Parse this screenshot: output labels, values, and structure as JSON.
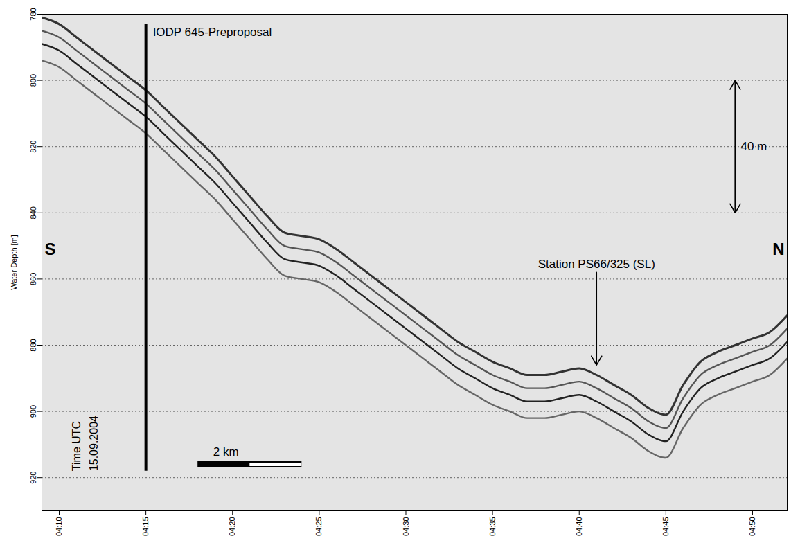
{
  "chart_data": {
    "type": "line",
    "y_label": "Water Depth [m]",
    "x": [
      "2004-09-15T04:09Z",
      "2004-09-15T04:10Z",
      "2004-09-15T04:11Z",
      "2004-09-15T04:12Z",
      "2004-09-15T04:13Z",
      "2004-09-15T04:14Z",
      "2004-09-15T04:15Z",
      "2004-09-15T04:16Z",
      "2004-09-15T04:17Z",
      "2004-09-15T04:18Z",
      "2004-09-15T04:19Z",
      "2004-09-15T04:20Z",
      "2004-09-15T04:21Z",
      "2004-09-15T04:22Z",
      "2004-09-15T04:23Z",
      "2004-09-15T04:24Z",
      "2004-09-15T04:25Z",
      "2004-09-15T04:26Z",
      "2004-09-15T04:27Z",
      "2004-09-15T04:28Z",
      "2004-09-15T04:29Z",
      "2004-09-15T04:30Z",
      "2004-09-15T04:31Z",
      "2004-09-15T04:32Z",
      "2004-09-15T04:33Z",
      "2004-09-15T04:34Z",
      "2004-09-15T04:35Z",
      "2004-09-15T04:36Z",
      "2004-09-15T04:37Z",
      "2004-09-15T04:38Z",
      "2004-09-15T04:39Z",
      "2004-09-15T04:40Z",
      "2004-09-15T04:41Z",
      "2004-09-15T04:42Z",
      "2004-09-15T04:43Z",
      "2004-09-15T04:44Z",
      "2004-09-15T04:45Z",
      "2004-09-15T04:46Z",
      "2004-09-15T04:47Z",
      "2004-09-15T04:48Z",
      "2004-09-15T04:49Z",
      "2004-09-15T04:50Z",
      "2004-09-15T04:51Z",
      "2004-09-15T04:52Z"
    ],
    "series": [
      {
        "color": "#333333",
        "values": [
          781,
          783,
          787,
          791,
          795,
          799,
          803,
          808,
          813,
          818,
          823,
          829,
          835,
          841,
          846,
          847,
          848,
          851,
          855,
          859,
          863,
          867,
          871,
          875,
          879,
          882,
          885,
          887,
          889,
          889,
          888,
          887,
          889,
          892,
          895,
          899,
          901,
          892,
          885,
          882,
          880,
          878,
          876,
          871
        ]
      },
      {
        "color": "#555555",
        "values": [
          785,
          787,
          791,
          795,
          799,
          803,
          807,
          812,
          817,
          822,
          827,
          833,
          839,
          845,
          850,
          851,
          852,
          855,
          859,
          863,
          867,
          871,
          875,
          879,
          883,
          886,
          889,
          891,
          893,
          893,
          892,
          891,
          893,
          896,
          899,
          903,
          905,
          896,
          889,
          886,
          884,
          882,
          880,
          875
        ]
      },
      {
        "color": "#222222",
        "values": [
          789,
          791,
          795,
          799,
          803,
          807,
          811,
          816,
          821,
          826,
          831,
          837,
          843,
          849,
          854,
          855,
          856,
          859,
          863,
          867,
          871,
          875,
          879,
          883,
          887,
          890,
          893,
          895,
          897,
          897,
          896,
          895,
          897,
          900,
          903,
          907,
          909,
          900,
          893,
          890,
          888,
          886,
          884,
          879
        ]
      },
      {
        "color": "#666666",
        "values": [
          794,
          796,
          800,
          804,
          808,
          812,
          816,
          821,
          826,
          831,
          836,
          842,
          848,
          854,
          859,
          860,
          861,
          864,
          868,
          872,
          876,
          880,
          884,
          888,
          892,
          895,
          898,
          900,
          902,
          902,
          901,
          900,
          902,
          905,
          908,
          912,
          914,
          905,
          898,
          895,
          893,
          891,
          889,
          884
        ]
      }
    ],
    "xlim": [
      "2004-09-15T04:09Z",
      "2004-09-15T04:52Z"
    ],
    "xticks": [
      {
        "value": "2004-09-15T04:10Z",
        "label": "04:10"
      },
      {
        "value": "2004-09-15T04:15Z",
        "label": "04:15"
      },
      {
        "value": "2004-09-15T04:20Z",
        "label": "04:20"
      },
      {
        "value": "2004-09-15T04:25Z",
        "label": "04:25"
      },
      {
        "value": "2004-09-15T04:30Z",
        "label": "04:30"
      },
      {
        "value": "2004-09-15T04:35Z",
        "label": "04:35"
      },
      {
        "value": "2004-09-15T04:40Z",
        "label": "04:40"
      },
      {
        "value": "2004-09-15T04:45Z",
        "label": "04:45"
      },
      {
        "value": "2004-09-15T04:50Z",
        "label": "04:50"
      }
    ],
    "ylim": [
      780,
      930
    ],
    "yticks": [
      780,
      800,
      820,
      840,
      860,
      880,
      900,
      920
    ],
    "grid": true,
    "annotations": [
      {
        "shape": "vertical_bar",
        "text": "IODP 645-Preproposal",
        "x": "2004-09-15T04:15Z",
        "y": [
          783,
          918
        ]
      },
      {
        "shape": "arrow",
        "text": "Station PS66/325 (SL)",
        "x": "2004-09-15T04:41Z",
        "y": [
          858,
          886
        ]
      },
      {
        "shape": "double_arrow",
        "text": "40 m",
        "x": "2004-09-15T04:49Z",
        "y": [
          800,
          840
        ]
      },
      {
        "shape": "scale_bar",
        "text": "2 km",
        "x": [
          "2004-09-15T04:18Z",
          "2004-09-15T04:24Z"
        ],
        "y": 916
      },
      {
        "shape": "label_start",
        "text": "S",
        "x": "2004-09-15T04:09Z",
        "y": 851
      },
      {
        "shape": "label_end",
        "text": "N",
        "x": "2004-09-15T04:52Z",
        "y": 851
      },
      {
        "shape": "vertical_text",
        "text": "Time UTC",
        "x": "2004-09-15T04:11Z",
        "y": 918
      },
      {
        "shape": "vertical_text",
        "text": "15.09.2004",
        "x": "2004-09-15T04:12Z",
        "y": 918
      }
    ]
  }
}
